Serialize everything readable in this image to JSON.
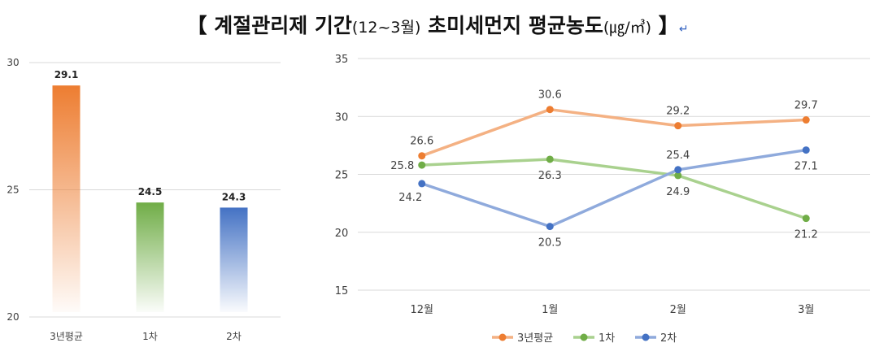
{
  "title": {
    "open_bracket": "【",
    "main_a": "계절관리제 기간",
    "paren_a": "(12~3월)",
    "main_b": "초미세먼지 평균농도",
    "paren_b": "(㎍/㎥)",
    "close_bracket": "】",
    "return_mark": "↵"
  },
  "colors": {
    "avg3": "#ED7D31",
    "avg3_line": "#F4B183",
    "phase1": "#70AD47",
    "phase1_line": "#A9D18E",
    "phase2": "#4472C4",
    "phase2_line": "#8FAADC",
    "axis": "#D9D9D9"
  },
  "chart_data": [
    {
      "type": "bar",
      "categories": [
        "3년평균",
        "1차",
        "2차"
      ],
      "values": [
        29.1,
        24.5,
        24.3
      ],
      "value_labels": [
        "29.1",
        "24.5",
        "24.3"
      ],
      "ylim": [
        20,
        30
      ],
      "yticks": [
        20,
        25,
        30
      ],
      "ytick_labels": [
        "20",
        "25",
        "30"
      ],
      "gradient_fill": true,
      "grid": false
    },
    {
      "type": "line",
      "x": [
        "12월",
        "1월",
        "2월",
        "3월"
      ],
      "ylim": [
        15,
        35
      ],
      "yticks": [
        15,
        20,
        25,
        30,
        35
      ],
      "ytick_labels": [
        "15",
        "20",
        "25",
        "30",
        "35"
      ],
      "grid": true,
      "legend_position": "bottom",
      "series": [
        {
          "name": "3년평균",
          "values": [
            26.6,
            30.6,
            29.2,
            29.7
          ],
          "labels": [
            "26.6",
            "30.6",
            "29.2",
            "29.7"
          ],
          "label_pos": [
            "above",
            "above",
            "above",
            "above"
          ]
        },
        {
          "name": "1차",
          "values": [
            25.8,
            26.3,
            24.9,
            21.2
          ],
          "labels": [
            "25.8",
            "26.3",
            "24.9",
            "21.2"
          ],
          "label_pos": [
            "left",
            "below",
            "below",
            "below"
          ]
        },
        {
          "name": "2차",
          "values": [
            24.2,
            20.5,
            25.4,
            27.1
          ],
          "labels": [
            "24.2",
            "20.5",
            "25.4",
            "27.1"
          ],
          "label_pos": [
            "left-below",
            "below",
            "above",
            "below"
          ]
        }
      ]
    }
  ]
}
